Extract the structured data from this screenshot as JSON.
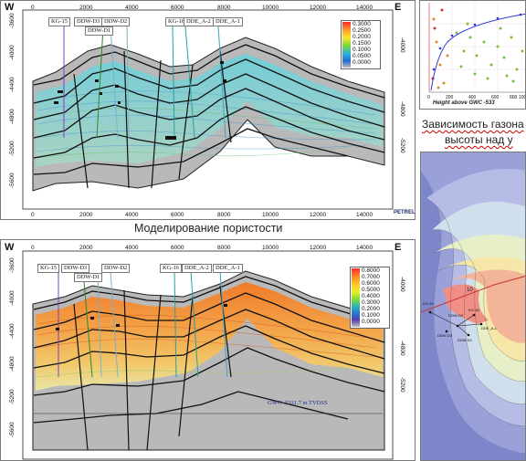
{
  "top_panel": {
    "west": "W",
    "east": "E",
    "x_ticks": [
      "0",
      "2000",
      "4000",
      "6000",
      "8000",
      "10000",
      "12000",
      "14000"
    ],
    "y_ticks": [
      "-3600",
      "-4000",
      "-4400",
      "-4800",
      "-5200",
      "-5600"
    ],
    "y_ticks_right": [
      "-3600",
      "-4000",
      "-4400",
      "-4800",
      "-5200",
      "-5600"
    ],
    "wells": [
      "KG-15",
      "DDW-D3",
      "DDW-D2",
      "DDW-D1",
      "KG-16",
      "DDE_A-2",
      "DDE_A-1"
    ],
    "legend": [
      "0.3000",
      "0.2500",
      "0.2000",
      "0.1500",
      "0.1000",
      "0.0500",
      "0.0000"
    ],
    "logo": "PETREL",
    "caption": "Моделирование пористости"
  },
  "bottom_panel": {
    "west": "W",
    "east": "E",
    "x_ticks": [
      "0",
      "2000",
      "4000",
      "6000",
      "8000",
      "10000",
      "12000",
      "14000"
    ],
    "y_ticks": [
      "-3600",
      "-4000",
      "-4400",
      "-4800",
      "-5200",
      "-5600"
    ],
    "y_ticks_right": [
      "-3600",
      "-4000",
      "-4400",
      "-4800",
      "-5200",
      "-5600"
    ],
    "wells": [
      "KG-15",
      "DDW-D3",
      "DDW-D2",
      "DDW-D1",
      "KG-16",
      "DDE_A-2",
      "DDE_A-1"
    ],
    "legend": [
      "0.8000",
      "0.7000",
      "0.6000",
      "0.5000",
      "0.4000",
      "0.3000",
      "0.2000",
      "0.1000",
      "0.0000"
    ],
    "gwc_label": "GWC -5331.7 m TVDSS"
  },
  "scatter_panel": {
    "xlabel": "Height above GWC -533",
    "x_ticks": [
      "0",
      "200",
      "400",
      "600",
      "800",
      "1000"
    ],
    "caption_line1": "Зависимость газона",
    "caption_line2": "высоты над у"
  },
  "map_panel": {
    "contours": [
      "10"
    ],
    "wells": [
      "KG-15",
      "DDW-D3",
      "DDW-D2",
      "DDW-D1",
      "KG-16",
      "DDE_A-1"
    ]
  }
}
